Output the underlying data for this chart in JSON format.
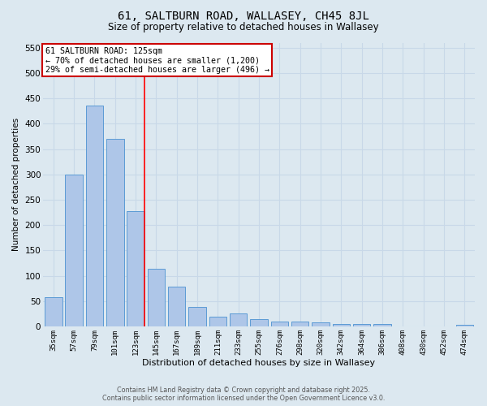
{
  "title": "61, SALTBURN ROAD, WALLASEY, CH45 8JL",
  "subtitle": "Size of property relative to detached houses in Wallasey",
  "xlabel": "Distribution of detached houses by size in Wallasey",
  "ylabel": "Number of detached properties",
  "categories": [
    "35sqm",
    "57sqm",
    "79sqm",
    "101sqm",
    "123sqm",
    "145sqm",
    "167sqm",
    "189sqm",
    "211sqm",
    "233sqm",
    "255sqm",
    "276sqm",
    "298sqm",
    "320sqm",
    "342sqm",
    "364sqm",
    "386sqm",
    "408sqm",
    "430sqm",
    "452sqm",
    "474sqm"
  ],
  "values": [
    57,
    300,
    435,
    370,
    228,
    113,
    78,
    38,
    19,
    26,
    14,
    9,
    9,
    8,
    4,
    4,
    5,
    0,
    0,
    0,
    3
  ],
  "bar_color": "#aec6e8",
  "bar_edge_color": "#5b9bd5",
  "annotation_text": "61 SALTBURN ROAD: 125sqm\n← 70% of detached houses are smaller (1,200)\n29% of semi-detached houses are larger (496) →",
  "annotation_box_color": "#ffffff",
  "annotation_box_edge_color": "#cc0000",
  "grid_color": "#c8d8e8",
  "background_color": "#dce8f0",
  "footer_line1": "Contains HM Land Registry data © Crown copyright and database right 2025.",
  "footer_line2": "Contains public sector information licensed under the Open Government Licence v3.0.",
  "ylim": [
    0,
    560
  ],
  "yticks": [
    0,
    50,
    100,
    150,
    200,
    250,
    300,
    350,
    400,
    450,
    500,
    550
  ]
}
